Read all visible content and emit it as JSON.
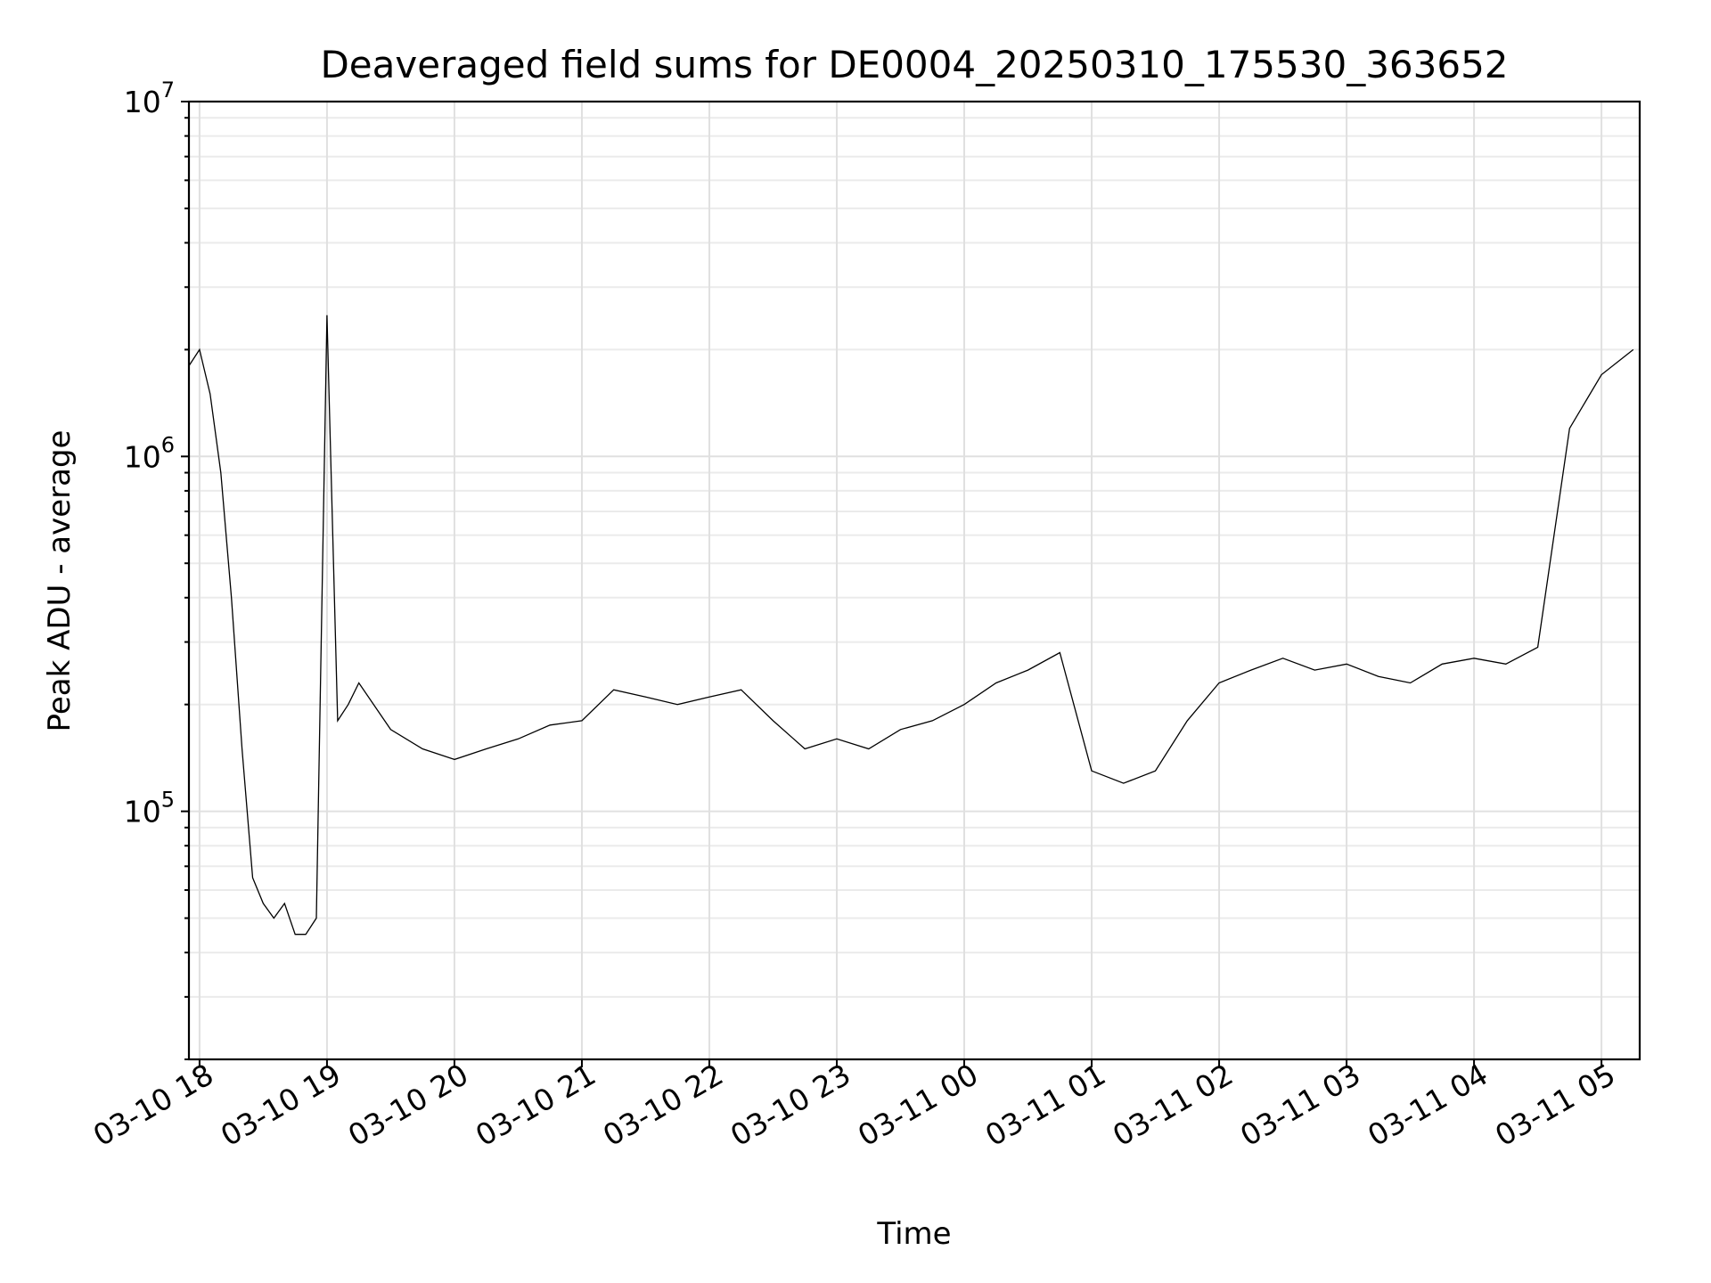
{
  "chart_data": {
    "type": "line",
    "title": "Deaveraged field sums for DE0004_20250310_175530_363652",
    "xlabel": "Time",
    "ylabel": "Peak ADU - average",
    "yscale": "log",
    "xlim": [
      "2025-03-10 17:55",
      "2025-03-11 05:18"
    ],
    "ylim": [
      20000,
      10000000
    ],
    "grid": "major and minor",
    "x_tick_labels": [
      "03-10 18",
      "03-10 19",
      "03-10 20",
      "03-10 21",
      "03-10 22",
      "03-10 23",
      "03-11 00",
      "03-11 01",
      "03-11 02",
      "03-11 03",
      "03-11 04",
      "03-11 05"
    ],
    "x_tick_values": [
      "2025-03-10 18:00",
      "2025-03-10 19:00",
      "2025-03-10 20:00",
      "2025-03-10 21:00",
      "2025-03-10 22:00",
      "2025-03-10 23:00",
      "2025-03-11 00:00",
      "2025-03-11 01:00",
      "2025-03-11 02:00",
      "2025-03-11 03:00",
      "2025-03-11 04:00",
      "2025-03-11 05:00"
    ],
    "y_ticks": [
      {
        "value": 100000,
        "base": "10",
        "exp": "5"
      },
      {
        "value": 1000000,
        "base": "10",
        "exp": "6"
      },
      {
        "value": 10000000,
        "base": "10",
        "exp": "7"
      }
    ],
    "series": [
      {
        "color": "#000000",
        "x": [
          "2025-03-10 17:55",
          "2025-03-10 18:00",
          "2025-03-10 18:05",
          "2025-03-10 18:10",
          "2025-03-10 18:15",
          "2025-03-10 18:20",
          "2025-03-10 18:25",
          "2025-03-10 18:30",
          "2025-03-10 18:35",
          "2025-03-10 18:40",
          "2025-03-10 18:45",
          "2025-03-10 18:50",
          "2025-03-10 18:55",
          "2025-03-10 19:00",
          "2025-03-10 19:05",
          "2025-03-10 19:10",
          "2025-03-10 19:15",
          "2025-03-10 19:30",
          "2025-03-10 19:45",
          "2025-03-10 20:00",
          "2025-03-10 20:15",
          "2025-03-10 20:30",
          "2025-03-10 20:45",
          "2025-03-10 21:00",
          "2025-03-10 21:15",
          "2025-03-10 21:30",
          "2025-03-10 21:45",
          "2025-03-10 22:00",
          "2025-03-10 22:15",
          "2025-03-10 22:30",
          "2025-03-10 22:45",
          "2025-03-10 23:00",
          "2025-03-10 23:15",
          "2025-03-10 23:30",
          "2025-03-10 23:45",
          "2025-03-11 00:00",
          "2025-03-11 00:15",
          "2025-03-11 00:30",
          "2025-03-11 00:45",
          "2025-03-11 01:00",
          "2025-03-11 01:15",
          "2025-03-11 01:30",
          "2025-03-11 01:45",
          "2025-03-11 02:00",
          "2025-03-11 02:15",
          "2025-03-11 02:30",
          "2025-03-11 02:45",
          "2025-03-11 03:00",
          "2025-03-11 03:15",
          "2025-03-11 03:30",
          "2025-03-11 03:45",
          "2025-03-11 04:00",
          "2025-03-11 04:15",
          "2025-03-11 04:30",
          "2025-03-11 04:45",
          "2025-03-11 05:00",
          "2025-03-11 05:15"
        ],
        "y": [
          1800000,
          2000000,
          1500000,
          900000,
          400000,
          150000,
          65000,
          55000,
          50000,
          55000,
          45000,
          45000,
          50000,
          2500000,
          180000,
          200000,
          230000,
          170000,
          150000,
          140000,
          150000,
          160000,
          175000,
          180000,
          220000,
          210000,
          200000,
          210000,
          220000,
          180000,
          150000,
          160000,
          150000,
          170000,
          180000,
          200000,
          230000,
          250000,
          280000,
          130000,
          120000,
          130000,
          180000,
          230000,
          250000,
          270000,
          250000,
          260000,
          240000,
          230000,
          260000,
          270000,
          260000,
          290000,
          1200000,
          1700000,
          2000000
        ]
      }
    ]
  }
}
